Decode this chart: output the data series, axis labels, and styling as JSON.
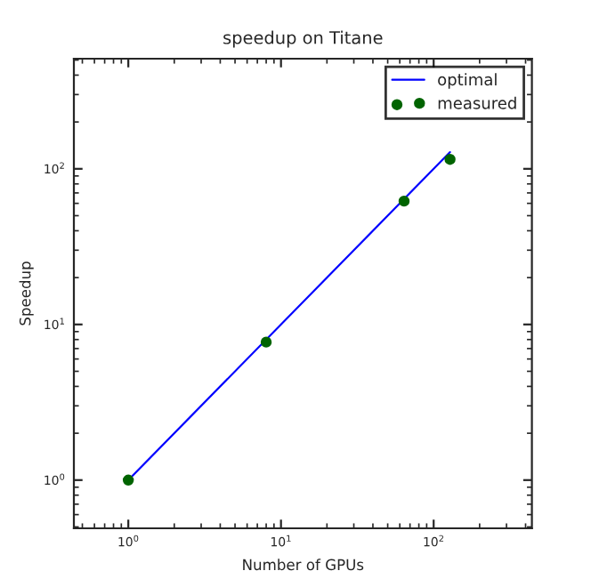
{
  "chart_data": {
    "type": "line",
    "title": "speedup on Titane",
    "xlabel": "Number of GPUs",
    "ylabel": "Speedup",
    "log": "xy",
    "series": [
      {
        "name": "optimal",
        "color": "#0000ff",
        "x": [
          1,
          128
        ],
        "values": [
          1,
          128
        ],
        "marker": "none"
      },
      {
        "name": "measured",
        "type": "scatter",
        "color": "#006400",
        "x": [
          1,
          8,
          64,
          128
        ],
        "values": [
          1,
          7.7,
          62,
          115
        ],
        "marker": "circle"
      }
    ],
    "xlim": [
      0.44,
      440
    ],
    "ylim": [
      0.49,
      510
    ],
    "xticks": [
      {
        "value": 1,
        "label": "10$^{0}$"
      },
      {
        "value": 10,
        "label": "10$^{1}$"
      },
      {
        "value": 100,
        "label": "10$^{2}$"
      }
    ],
    "yticks": [
      {
        "value": 1,
        "label": "10$^{0}$"
      },
      {
        "value": 10,
        "label": "10$^{1}$"
      },
      {
        "value": 100,
        "label": "10$^{2}$"
      }
    ],
    "grid": false,
    "legend": "top right"
  }
}
